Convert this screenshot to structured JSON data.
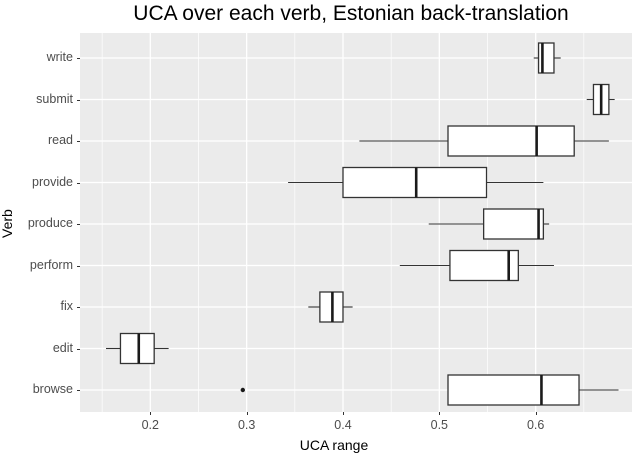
{
  "chart_data": {
    "type": "boxplot",
    "orientation": "horizontal",
    "title": "UCA over each verb, Estonian back-translation",
    "xlabel": "UCA range",
    "ylabel": "Verb",
    "categories_top_to_bottom": [
      "write",
      "submit",
      "read",
      "provide",
      "produce",
      "perform",
      "fix",
      "edit",
      "browse"
    ],
    "x_ticks": [
      0.2,
      0.3,
      0.4,
      0.5,
      0.6
    ],
    "x_tick_labels": [
      "0.2",
      "0.3",
      "0.4",
      "0.5",
      "0.6"
    ],
    "x_minor_ticks": [
      0.15,
      0.25,
      0.35,
      0.45,
      0.55,
      0.65
    ],
    "xlim": [
      0.127,
      0.7
    ],
    "grid": "major-and-minor",
    "legend": "none",
    "boxes": [
      {
        "verb": "write",
        "min": 0.598,
        "q1": 0.603,
        "median": 0.607,
        "q3": 0.619,
        "max": 0.626,
        "outliers": []
      },
      {
        "verb": "submit",
        "min": 0.653,
        "q1": 0.66,
        "median": 0.668,
        "q3": 0.676,
        "max": 0.682,
        "outliers": []
      },
      {
        "verb": "read",
        "min": 0.417,
        "q1": 0.509,
        "median": 0.601,
        "q3": 0.64,
        "max": 0.676,
        "outliers": []
      },
      {
        "verb": "provide",
        "min": 0.343,
        "q1": 0.4,
        "median": 0.476,
        "q3": 0.549,
        "max": 0.608,
        "outliers": []
      },
      {
        "verb": "produce",
        "min": 0.489,
        "q1": 0.546,
        "median": 0.603,
        "q3": 0.608,
        "max": 0.614,
        "outliers": []
      },
      {
        "verb": "perform",
        "min": 0.459,
        "q1": 0.511,
        "median": 0.572,
        "q3": 0.582,
        "max": 0.619,
        "outliers": []
      },
      {
        "verb": "fix",
        "min": 0.364,
        "q1": 0.376,
        "median": 0.389,
        "q3": 0.4,
        "max": 0.41,
        "outliers": []
      },
      {
        "verb": "edit",
        "min": 0.154,
        "q1": 0.169,
        "median": 0.188,
        "q3": 0.204,
        "max": 0.219,
        "outliers": []
      },
      {
        "verb": "browse",
        "min": 0.509,
        "q1": 0.509,
        "median": 0.606,
        "q3": 0.645,
        "max": 0.686,
        "outliers": [
          0.296
        ]
      }
    ],
    "style": {
      "panel_bg": "#EBEBEB",
      "grid_major_color": "#FFFFFF",
      "grid_minor_color": "#FFFFFF",
      "box_stroke": "#333333",
      "box_fill": "#FFFFFF",
      "median_stroke": "#1A1A1A",
      "outlier_color": "#1A1A1A",
      "tick_color": "#333333",
      "axis_text_color": "#4D4D4D",
      "title_color": "#000000"
    }
  }
}
